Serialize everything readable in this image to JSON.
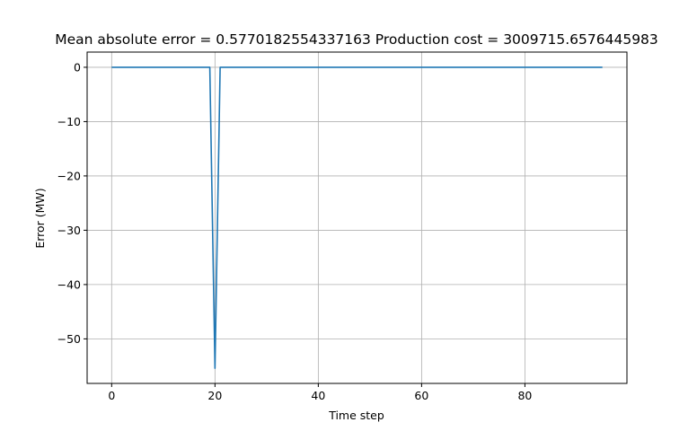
{
  "chart_data": {
    "type": "line",
    "title": "Mean absolute error = 0.5770182554337163 Production cost = 3009715.6576445983",
    "xlabel": "Time step",
    "ylabel": "Error (MW)",
    "xlim": [
      -4.75,
      99.75
    ],
    "ylim": [
      -58.2,
      2.8
    ],
    "xticks": [
      0,
      20,
      40,
      60,
      80
    ],
    "yticks": [
      0,
      -10,
      -20,
      -30,
      -40,
      -50
    ],
    "grid": true,
    "legend": "none",
    "series": [
      {
        "color": "#1f77b4",
        "points": [
          [
            0,
            0
          ],
          [
            19,
            0
          ],
          [
            20,
            -55.4
          ],
          [
            21,
            0
          ],
          [
            95,
            0
          ]
        ]
      }
    ]
  }
}
